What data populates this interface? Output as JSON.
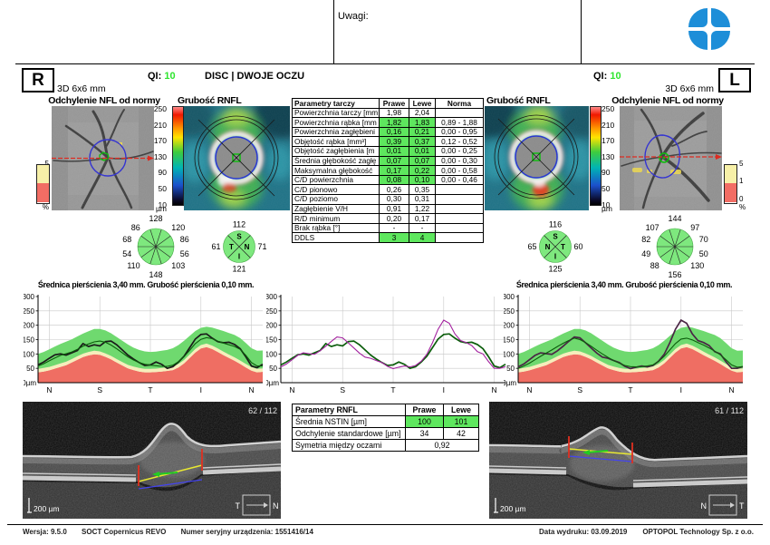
{
  "header": {
    "uwagi": "Uwagi:",
    "qi_label": "QI:",
    "qi_right_value": "10",
    "qi_left_value": "10",
    "scan_mode": "DISC | DWOJE OCZU",
    "eye_right": "R",
    "eye_left": "L",
    "scan_size": "3D  6x6 mm"
  },
  "maps": {
    "deviation_title": "Odchylenie NFL od normy",
    "thickness_title": "Grubość RNFL",
    "um_scale": [
      "250",
      "210",
      "170",
      "130",
      "90",
      "50",
      "10"
    ],
    "um_unit": "µm",
    "pct_scale": [
      "5",
      "1",
      "0"
    ],
    "pct_unit": "%"
  },
  "disc_table": {
    "headers": [
      "Parametry tarczy",
      "Prawe",
      "Lewe",
      "Norma"
    ],
    "rows": [
      {
        "label": "Powierzchnia tarczy [mm",
        "prawe": "1,98",
        "lewe": "2,04",
        "norma": "",
        "hl": false
      },
      {
        "label": "Powierzchnia rąbka [mm",
        "prawe": "1,82",
        "lewe": "1,83",
        "norma": "0,89 - 1,88",
        "hl": true
      },
      {
        "label": "Powierzchnia zagłębieni",
        "prawe": "0,16",
        "lewe": "0,21",
        "norma": "0,00 - 0,95",
        "hl": true
      },
      {
        "label": "Objętość rąbka [mm³]",
        "prawe": "0,39",
        "lewe": "0,37",
        "norma": "0,12 - 0,52",
        "hl": true
      },
      {
        "label": "Objętość zagłębienia [m",
        "prawe": "0,01",
        "lewe": "0,01",
        "norma": "0,00 - 0,25",
        "hl": true
      },
      {
        "label": "Średnia głębokość zagłę",
        "prawe": "0,07",
        "lewe": "0,07",
        "norma": "0,00 - 0,30",
        "hl": true
      },
      {
        "label": "Maksymalna głębokość",
        "prawe": "0,17",
        "lewe": "0,22",
        "norma": "0,00 - 0,58",
        "hl": true
      },
      {
        "label": "C/D powierzchnia",
        "prawe": "0,08",
        "lewe": "0,10",
        "norma": "0,00 - 0,46",
        "hl": true
      },
      {
        "label": "C/D pionowo",
        "prawe": "0,26",
        "lewe": "0,35",
        "norma": "",
        "hl": false
      },
      {
        "label": "C/D poziomo",
        "prawe": "0,30",
        "lewe": "0,31",
        "norma": "",
        "hl": false
      },
      {
        "label": "Zagłębienie V/H",
        "prawe": "0,91",
        "lewe": "1,22",
        "norma": "",
        "hl": false
      },
      {
        "label": "R/D minimum",
        "prawe": "0,20",
        "lewe": "0,17",
        "norma": "",
        "hl": false
      },
      {
        "label": "Brak rąbka [°]",
        "prawe": "-",
        "lewe": "-",
        "norma": "",
        "hl": false
      },
      {
        "label": "DDLS",
        "prawe": "3",
        "lewe": "4",
        "norma": "",
        "hl": true
      }
    ]
  },
  "sectors": {
    "right_eye": {
      "clock": [
        "128",
        "120",
        "86",
        "56",
        "103",
        "148",
        "110",
        "54",
        "68",
        "86"
      ],
      "quad_values": {
        "top": "112",
        "left": "61",
        "right": "71",
        "bottom": "121"
      },
      "quad_letters": {
        "top": "S",
        "left": "T",
        "right": "N",
        "bottom": "I"
      }
    },
    "left_eye": {
      "clock": [
        "144",
        "97",
        "70",
        "50",
        "130",
        "156",
        "88",
        "49",
        "82",
        "107"
      ],
      "quad_values": {
        "top": "116",
        "left": "65",
        "right": "60",
        "bottom": "125"
      },
      "quad_letters": {
        "top": "S",
        "left": "N",
        "right": "T",
        "bottom": "I"
      }
    }
  },
  "profiles": {
    "title": "Średnica pierścienia 3,40 mm. Grubość pierścienia 0,10 mm.",
    "y_ticks": [
      300,
      250,
      200,
      150,
      100,
      50
    ],
    "y_zero": "0µm",
    "x_labels": [
      "N",
      "S",
      "T",
      "I",
      "N"
    ]
  },
  "chart_data": [
    {
      "type": "area",
      "eye": "R",
      "title": "Średnica pierścienia 3,40 mm. Grubość pierścienia 0,10 mm.",
      "ylabel": "µm",
      "ylim": [
        0,
        300
      ],
      "x_categories": [
        "N",
        "S",
        "T",
        "I",
        "N"
      ],
      "series": [
        {
          "name": "RNFL profil prawe",
          "color": "#1a1a1a",
          "values": [
            62,
            72,
            85,
            97,
            100,
            96,
            104,
            112,
            136,
            126,
            132,
            128,
            143,
            145,
            132,
            114,
            96,
            82,
            70,
            60,
            62,
            72,
            64,
            50,
            56,
            72,
            92,
            122,
            152,
            168,
            170,
            155,
            143,
            139,
            141,
            133,
            118,
            90,
            58,
            52,
            64
          ]
        },
        {
          "name": "norma mediana",
          "color": "#0b5d0b",
          "values": [
            58,
            66,
            76,
            86,
            95,
            101,
            107,
            116,
            127,
            135,
            142,
            145,
            141,
            131,
            118,
            104,
            90,
            79,
            70,
            64,
            61,
            59,
            57,
            57,
            61,
            73,
            91,
            113,
            136,
            151,
            157,
            153,
            145,
            138,
            132,
            126,
            116,
            95,
            70,
            58,
            58
          ]
        }
      ],
      "bands": {
        "green_top": [
          100,
          107,
          116,
          126,
          135,
          143,
          151,
          161,
          171,
          179,
          187,
          187,
          182,
          172,
          159,
          146,
          133,
          122,
          114,
          109,
          107,
          108,
          111,
          114,
          120,
          131,
          146,
          163,
          180,
          191,
          195,
          192,
          186,
          180,
          173,
          166,
          155,
          138,
          120,
          111,
          112
        ],
        "red_top": [
          36,
          39,
          43,
          49,
          55,
          61,
          70,
          80,
          89,
          95,
          99,
          97,
          90,
          81,
          70,
          60,
          50,
          44,
          39,
          36,
          36,
          37,
          39,
          41,
          44,
          53,
          67,
          86,
          105,
          119,
          124,
          117,
          107,
          96,
          86,
          76,
          65,
          53,
          42,
          36,
          38
        ],
        "cream_offset": 12
      }
    },
    {
      "type": "line",
      "eye": "both",
      "ylabel": "µm",
      "ylim": [
        0,
        300
      ],
      "x_categories": [
        "N",
        "S",
        "T",
        "I",
        "N"
      ],
      "series": [
        {
          "name": "RNFL prawe",
          "color": "#0b5d0b",
          "values": [
            62,
            72,
            85,
            97,
            100,
            96,
            104,
            112,
            136,
            126,
            132,
            128,
            143,
            145,
            132,
            114,
            96,
            82,
            70,
            60,
            62,
            72,
            64,
            50,
            56,
            72,
            92,
            122,
            152,
            168,
            170,
            155,
            143,
            139,
            141,
            133,
            118,
            90,
            58,
            52,
            64
          ]
        },
        {
          "name": "RNFL lewe",
          "color": "#a2209e",
          "values": [
            55,
            65,
            80,
            95,
            104,
            101,
            99,
            111,
            127,
            144,
            159,
            156,
            139,
            121,
            103,
            89,
            85,
            77,
            70,
            57,
            49,
            54,
            58,
            55,
            60,
            75,
            99,
            139,
            186,
            218,
            207,
            170,
            147,
            140,
            129,
            108,
            100,
            73,
            50,
            50,
            56
          ]
        }
      ]
    },
    {
      "type": "area",
      "eye": "L",
      "title": "Średnica pierścienia 3,40 mm. Grubość pierścienia 0,10 mm.",
      "ylabel": "µm",
      "ylim": [
        0,
        300
      ],
      "x_categories": [
        "N",
        "S",
        "T",
        "I",
        "N"
      ],
      "series": [
        {
          "name": "RNFL profil lewe",
          "color": "#4a2545",
          "values": [
            55,
            65,
            80,
            95,
            104,
            101,
            99,
            111,
            127,
            144,
            159,
            156,
            139,
            121,
            103,
            89,
            85,
            77,
            70,
            57,
            49,
            54,
            58,
            55,
            60,
            75,
            99,
            139,
            186,
            218,
            207,
            170,
            147,
            140,
            129,
            108,
            100,
            73,
            50,
            50,
            56
          ]
        },
        {
          "name": "norma mediana",
          "color": "#0b5d0b",
          "values": [
            50,
            58,
            68,
            80,
            92,
            103,
            114,
            126,
            137,
            147,
            155,
            150,
            140,
            127,
            113,
            100,
            88,
            77,
            68,
            60,
            56,
            55,
            56,
            58,
            62,
            74,
            92,
            114,
            136,
            152,
            155,
            149,
            140,
            131,
            121,
            110,
            97,
            80,
            62,
            54,
            56
          ]
        }
      ],
      "bands": {
        "green_top": [
          100,
          107,
          116,
          126,
          135,
          143,
          151,
          161,
          171,
          179,
          187,
          187,
          182,
          172,
          159,
          146,
          133,
          122,
          114,
          109,
          107,
          108,
          111,
          114,
          120,
          131,
          146,
          163,
          180,
          191,
          195,
          192,
          186,
          180,
          173,
          166,
          155,
          138,
          120,
          111,
          112
        ],
        "red_top": [
          36,
          39,
          43,
          49,
          55,
          61,
          70,
          80,
          89,
          95,
          99,
          97,
          90,
          81,
          70,
          60,
          50,
          44,
          39,
          36,
          36,
          37,
          39,
          41,
          44,
          53,
          67,
          86,
          105,
          119,
          124,
          117,
          107,
          96,
          86,
          76,
          65,
          53,
          42,
          36,
          38
        ],
        "cream_offset": 12
      }
    }
  ],
  "rnfl_table": {
    "headers": [
      "Parametry RNFL",
      "Prawe",
      "Lewe"
    ],
    "rows": [
      {
        "label": "Średnia NSTIN [µm]",
        "prawe": "100",
        "lewe": "101",
        "hl": true,
        "span": false
      },
      {
        "label": "Odchylenie standardowe [µm]",
        "prawe": "34",
        "lewe": "42",
        "hl": false,
        "span": false
      },
      {
        "label": "Symetria między oczami",
        "prawe": "0,92",
        "lewe": "",
        "hl": false,
        "span": true
      }
    ]
  },
  "bscans": {
    "right": {
      "frame": "62 / 112",
      "scale": "200 µm",
      "dir_left": "T",
      "dir_right": "N"
    },
    "left": {
      "frame": "61 / 112",
      "scale": "200 µm",
      "dir_left": "N",
      "dir_right": "T"
    }
  },
  "footer": {
    "version": "Wersja: 9.5.0",
    "device": "SOCT Copernicus REVO",
    "serial": "Numer seryjny urządzenia: 1551416/14",
    "print_date": "Data wydruku: 03.09.2019",
    "company": "OPTOPOL Technology Sp. z o.o."
  },
  "colors": {
    "qi_green": "#2ee52e",
    "cell_green": "#5ee75e",
    "sector_green": "#7ee87e",
    "band_green": "#6fd96f",
    "band_cream": "#f6eebb",
    "band_red": "#ef6e63",
    "grid": "#c8c8c8",
    "logo_blue": "#1d8ed8"
  }
}
